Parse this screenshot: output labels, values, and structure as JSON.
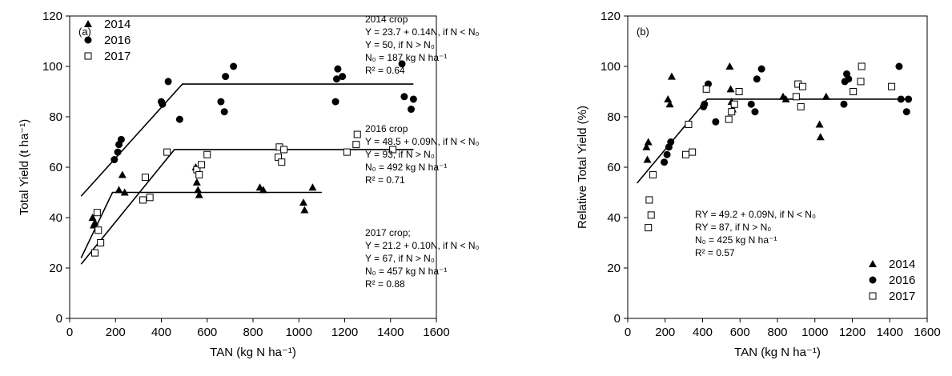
{
  "chart_data": [
    {
      "type": "scatter",
      "panel_label": "(a)",
      "xlabel": "TAN (kg N ha⁻¹)",
      "ylabel": "Total Yield (t ha⁻¹)",
      "xlim": [
        0,
        1600
      ],
      "ylim": [
        0,
        120
      ],
      "xticks": [
        0,
        200,
        400,
        600,
        800,
        1000,
        1200,
        1400,
        1600
      ],
      "yticks": [
        0,
        20,
        40,
        60,
        80,
        100,
        120
      ],
      "grid": false,
      "legend_position": "top-left",
      "series": [
        {
          "name": "2014",
          "marker": "filled-triangle",
          "points": [
            [
              100,
              40
            ],
            [
              105,
              37
            ],
            [
              110,
              38
            ],
            [
              215,
              51
            ],
            [
              230,
              57
            ],
            [
              240,
              50
            ],
            [
              550,
              60
            ],
            [
              555,
              54
            ],
            [
              560,
              51
            ],
            [
              565,
              49
            ],
            [
              830,
              52
            ],
            [
              845,
              51
            ],
            [
              1020,
              46
            ],
            [
              1025,
              43
            ],
            [
              1060,
              52
            ]
          ],
          "fit": [
            [
              50,
              24
            ],
            [
              187,
              50
            ],
            [
              1100,
              50
            ]
          ]
        },
        {
          "name": "2016",
          "marker": "filled-circle",
          "points": [
            [
              195,
              63
            ],
            [
              210,
              66
            ],
            [
              215,
              69
            ],
            [
              225,
              71
            ],
            [
              400,
              86
            ],
            [
              405,
              85
            ],
            [
              430,
              94
            ],
            [
              480,
              79
            ],
            [
              660,
              86
            ],
            [
              675,
              82
            ],
            [
              680,
              96
            ],
            [
              715,
              100
            ],
            [
              1160,
              86
            ],
            [
              1165,
              95
            ],
            [
              1170,
              99
            ],
            [
              1190,
              96
            ],
            [
              1450,
              101
            ],
            [
              1460,
              88
            ],
            [
              1490,
              83
            ],
            [
              1500,
              87
            ]
          ],
          "fit": [
            [
              50,
              48.5
            ],
            [
              492,
              93
            ],
            [
              1500,
              93
            ]
          ]
        },
        {
          "name": "2017",
          "marker": "open-square",
          "points": [
            [
              110,
              26
            ],
            [
              120,
              42
            ],
            [
              125,
              35
            ],
            [
              135,
              30
            ],
            [
              320,
              47
            ],
            [
              330,
              56
            ],
            [
              350,
              48
            ],
            [
              425,
              66
            ],
            [
              555,
              59
            ],
            [
              565,
              57
            ],
            [
              575,
              61
            ],
            [
              600,
              65
            ],
            [
              910,
              64
            ],
            [
              915,
              68
            ],
            [
              925,
              62
            ],
            [
              935,
              67
            ],
            [
              1210,
              66
            ],
            [
              1250,
              69
            ],
            [
              1255,
              73
            ],
            [
              1410,
              67
            ]
          ],
          "fit": [
            [
              50,
              21.5
            ],
            [
              457,
              67
            ],
            [
              1500,
              67
            ]
          ]
        }
      ],
      "annotations": [
        {
          "lines": [
            "2014 crop",
            "Y = 23.7 + 0.14N, if N < N₀",
            "Y = 50, if N > N₀",
            "N₀ = 187 kg N ha⁻¹",
            "R² = 0.64"
          ]
        },
        {
          "lines": [
            "2016 crop",
            "Y = 48.5 + 0.09N, if N < N₀",
            "Y = 93, if N > N₀",
            "N₀ = 492 kg N ha⁻¹",
            "R² = 0.71"
          ]
        },
        {
          "lines": [
            "2017 crop;",
            "Y = 21.2 + 0.10N, if N < N₀",
            "Y = 67, if N > N₀",
            "N₀ = 457 kg N ha⁻¹",
            "R² = 0.88"
          ]
        }
      ]
    },
    {
      "type": "scatter",
      "panel_label": "(b)",
      "xlabel": "TAN (kg N ha⁻¹)",
      "ylabel": "Relative Total Yield (%)",
      "xlim": [
        0,
        1600
      ],
      "ylim": [
        0,
        120
      ],
      "xticks": [
        0,
        200,
        400,
        600,
        800,
        1000,
        1200,
        1400,
        1600
      ],
      "yticks": [
        0,
        20,
        40,
        60,
        80,
        100,
        120
      ],
      "grid": false,
      "legend_position": "bottom-right",
      "series": [
        {
          "name": "2014",
          "marker": "filled-triangle",
          "points": [
            [
              100,
              68
            ],
            [
              105,
              63
            ],
            [
              110,
              70
            ],
            [
              215,
              87
            ],
            [
              225,
              85
            ],
            [
              235,
              96
            ],
            [
              545,
              100
            ],
            [
              550,
              91
            ],
            [
              555,
              86
            ],
            [
              560,
              83
            ],
            [
              830,
              88
            ],
            [
              845,
              87
            ],
            [
              1025,
              77
            ],
            [
              1030,
              72
            ],
            [
              1060,
              88
            ]
          ],
          "fit": null
        },
        {
          "name": "2016",
          "marker": "filled-circle",
          "points": [
            [
              195,
              62
            ],
            [
              210,
              65
            ],
            [
              220,
              68
            ],
            [
              230,
              70
            ],
            [
              405,
              84
            ],
            [
              410,
              85
            ],
            [
              430,
              93
            ],
            [
              470,
              78
            ],
            [
              660,
              85
            ],
            [
              680,
              82
            ],
            [
              690,
              95
            ],
            [
              715,
              99
            ],
            [
              1155,
              85
            ],
            [
              1160,
              94
            ],
            [
              1170,
              97
            ],
            [
              1180,
              95
            ],
            [
              1450,
              100
            ],
            [
              1460,
              87
            ],
            [
              1490,
              82
            ],
            [
              1500,
              87
            ]
          ],
          "fit": null
        },
        {
          "name": "2017",
          "marker": "open-square",
          "points": [
            [
              110,
              36
            ],
            [
              115,
              47
            ],
            [
              125,
              41
            ],
            [
              135,
              57
            ],
            [
              310,
              65
            ],
            [
              325,
              77
            ],
            [
              345,
              66
            ],
            [
              420,
              91
            ],
            [
              540,
              79
            ],
            [
              555,
              82
            ],
            [
              570,
              85
            ],
            [
              595,
              90
            ],
            [
              900,
              88
            ],
            [
              910,
              93
            ],
            [
              925,
              84
            ],
            [
              935,
              92
            ],
            [
              1205,
              90
            ],
            [
              1245,
              94
            ],
            [
              1250,
              100
            ],
            [
              1410,
              92
            ]
          ],
          "fit": null
        }
      ],
      "fit": [
        [
          50,
          53.7
        ],
        [
          425,
          87
        ],
        [
          1500,
          87
        ]
      ],
      "annotations": [
        {
          "lines": [
            "RY = 49.2 + 0.09N, if N < N₀",
            "RY = 87, if N > N₀",
            "N₀ = 425 kg N ha⁻¹",
            "R² = 0.57"
          ]
        }
      ]
    }
  ]
}
